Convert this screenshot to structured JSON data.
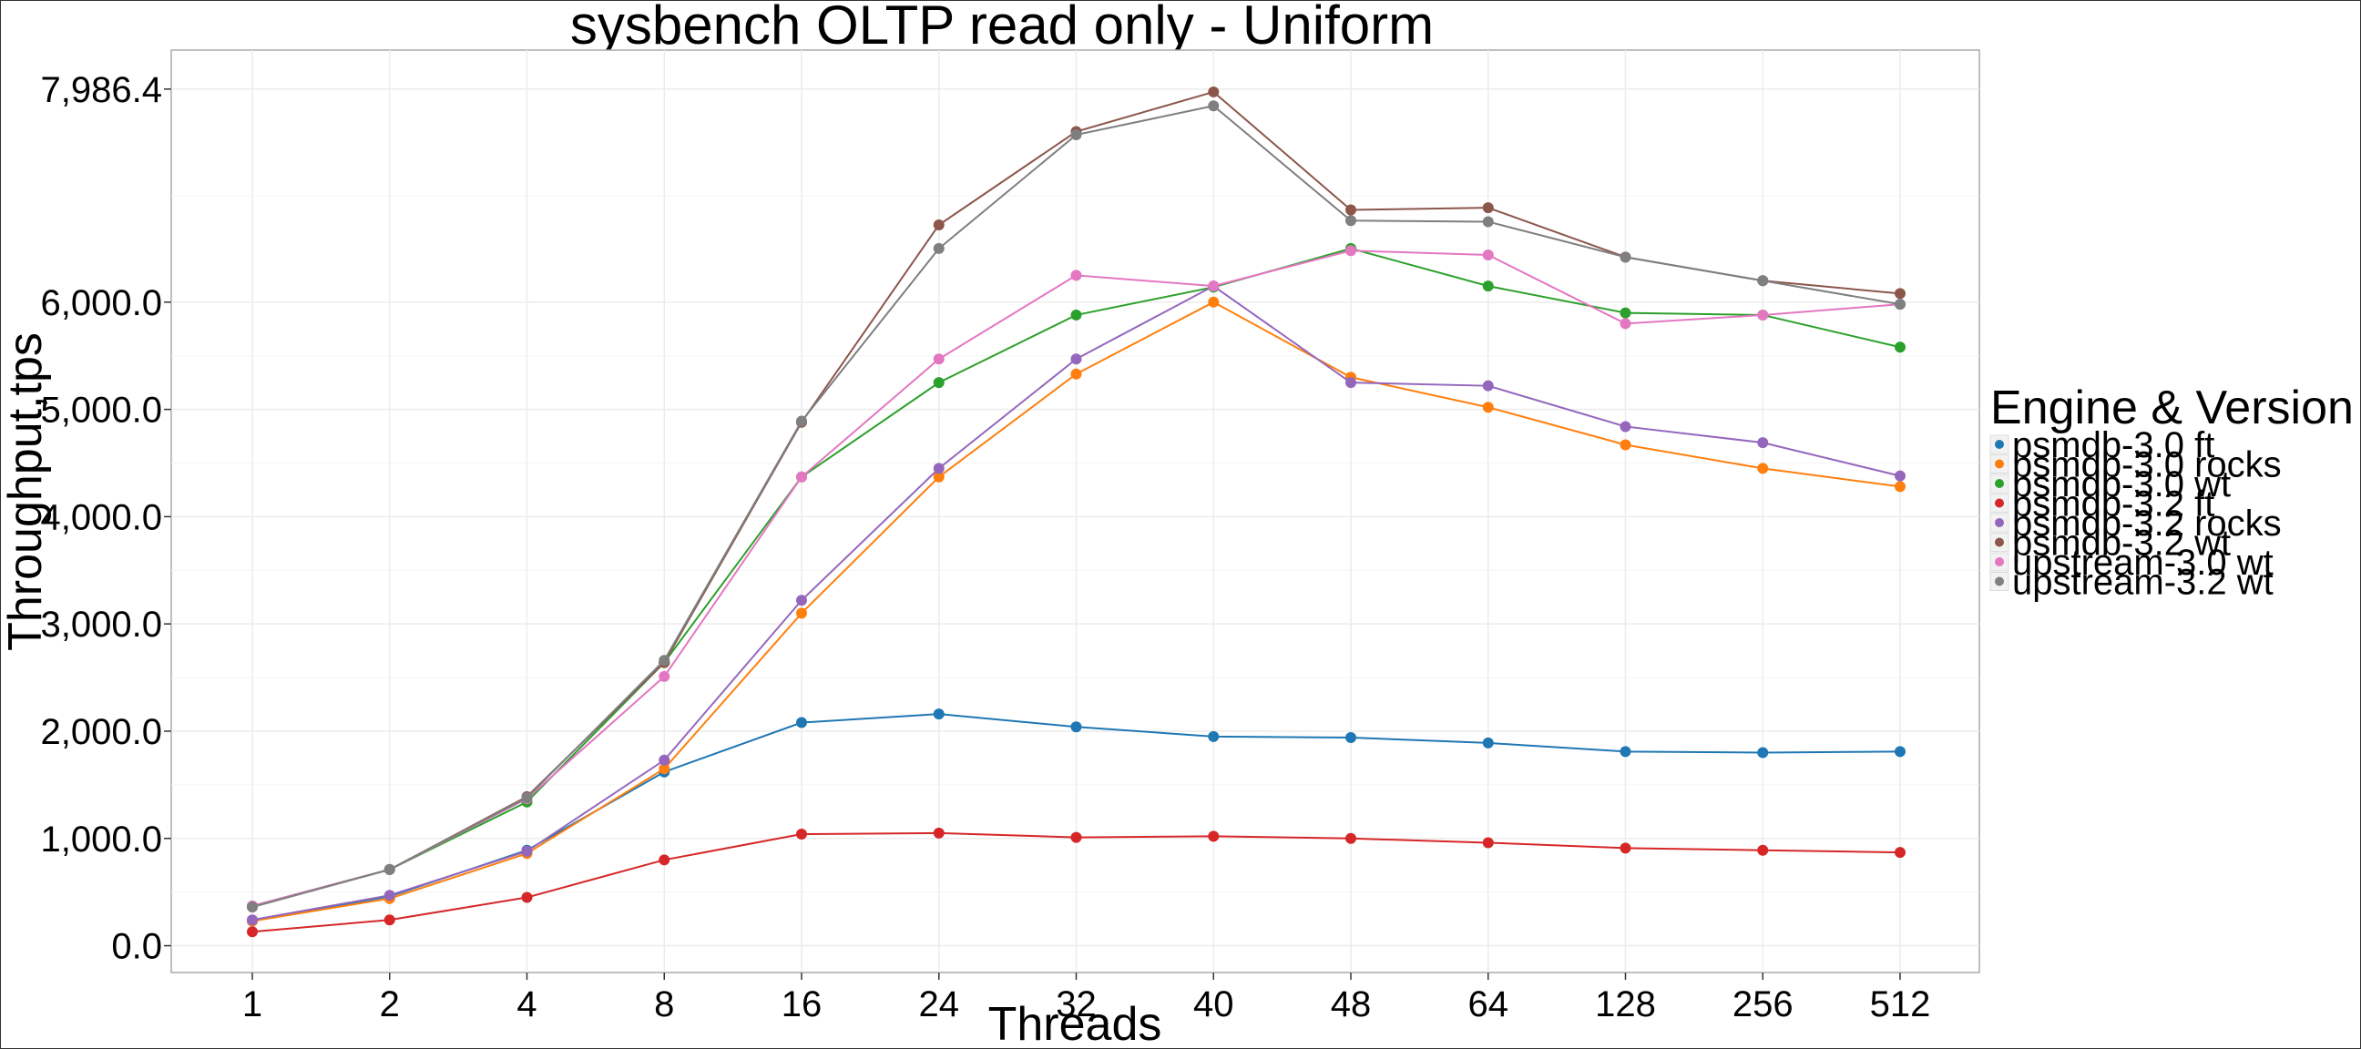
{
  "chart_data": {
    "type": "line",
    "title": "sysbench OLTP read only - Uniform",
    "xlabel": "Threads",
    "ylabel": "Throughput,tps",
    "categories": [
      "1",
      "2",
      "4",
      "8",
      "16",
      "24",
      "32",
      "40",
      "48",
      "64",
      "128",
      "256",
      "512"
    ],
    "y_ticks": [
      0,
      1000,
      2000,
      3000,
      4000,
      5000,
      6000,
      7986.4
    ],
    "y_tick_labels": [
      "0.0",
      "1,000.0",
      "2,000.0",
      "3,000.0",
      "4,000.0",
      "5,000.0",
      "6,000.0",
      "7,986.4"
    ],
    "ylim": [
      -250,
      8350
    ],
    "grid": true,
    "legend": {
      "title": "Engine & Version",
      "position": "right"
    },
    "series": [
      {
        "name": "psmdb-3.0 ft",
        "color": "#1f77b4",
        "values": [
          230,
          460,
          890,
          1620,
          2080,
          2160,
          2040,
          1950,
          1940,
          1890,
          1810,
          1800,
          1810
        ]
      },
      {
        "name": "psmdb-3.0 rocks",
        "color": "#ff7f0e",
        "values": [
          230,
          440,
          860,
          1650,
          3100,
          4370,
          5330,
          6000,
          5300,
          5020,
          4670,
          4450,
          4280
        ]
      },
      {
        "name": "psmdb-3.0 wt",
        "color": "#2ca02c",
        "values": [
          370,
          710,
          1340,
          2640,
          4370,
          5250,
          5880,
          6140,
          6500,
          6150,
          5900,
          5880,
          5580
        ]
      },
      {
        "name": "psmdb-3.2 ft",
        "color": "#d62728",
        "values": [
          130,
          240,
          450,
          800,
          1040,
          1050,
          1010,
          1020,
          1000,
          960,
          910,
          890,
          870
        ]
      },
      {
        "name": "psmdb-3.2 rocks",
        "color": "#9467bd",
        "values": [
          240,
          470,
          880,
          1730,
          3220,
          4450,
          5470,
          6150,
          5250,
          5220,
          4840,
          4690,
          4380
        ]
      },
      {
        "name": "psmdb-3.2 wt",
        "color": "#8c564b",
        "values": [
          370,
          710,
          1390,
          2640,
          4880,
          6720,
          7590,
          7960,
          6860,
          6880,
          6420,
          6200,
          6080
        ]
      },
      {
        "name": "upstream-3.0 wt",
        "color": "#e377c2",
        "values": [
          370,
          710,
          1370,
          2510,
          4370,
          5470,
          6250,
          6150,
          6480,
          6440,
          5800,
          5880,
          5980
        ]
      },
      {
        "name": "upstream-3.2 wt",
        "color": "#7f7f7f",
        "values": [
          360,
          710,
          1380,
          2660,
          4890,
          6500,
          7560,
          7830,
          6760,
          6750,
          6420,
          6200,
          5980
        ]
      }
    ]
  }
}
